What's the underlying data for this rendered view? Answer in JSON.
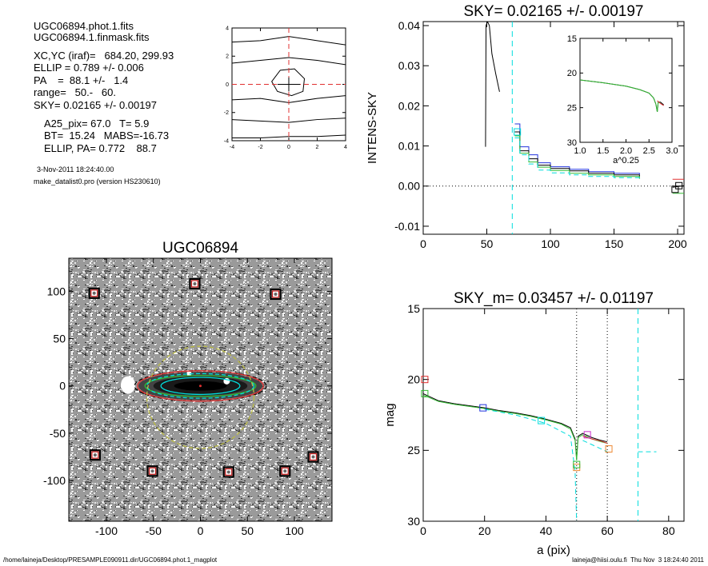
{
  "info": {
    "header": [
      "UGC06894.phot.1.fits",
      "UGC06894.1.finmask.fits"
    ],
    "params": [
      "XC,YC (iraf)=   684.20, 299.93",
      "ELLIP = 0.789 +/- 0.006",
      "PA    =  88.1 +/-   1.4",
      "range=   50.-   60.",
      "SKY= 0.02165 +/- 0.00197"
    ],
    "results": [
      "A25_pix= 67.0   T= 5.9",
      "BT=  15.24   MABS=-16.73",
      "ELLIP, PA= 0.772    88.7"
    ],
    "date": "3-Nov-2011 18:24:40.00",
    "program": "make_datalist0.pro (version HS230610)"
  },
  "footer": {
    "left": "/home/laineja/Desktop/PRESAMPLE090911.dir/UGC06894.phot.1_magplot",
    "right": "laineja@hiisi.oulu.fi  Thu Nov  3 18:24:40 2011"
  },
  "colors": {
    "black": "#000000",
    "red": "#e03030",
    "green": "#33bb33",
    "blue": "#2233dd",
    "cyan": "#00dddd",
    "magenta": "#cc33cc",
    "orange": "#ee8833",
    "olive": "#bbbb44"
  },
  "chart_data": [
    {
      "id": "centroid-plot",
      "type": "line",
      "title": "",
      "xlim": [
        -4,
        4
      ],
      "ylim": [
        -4,
        4
      ],
      "xticks": [
        -4,
        -2,
        0,
        2,
        4
      ],
      "yticks": [
        -4,
        -2,
        0,
        2,
        4
      ],
      "series": [
        {
          "color": "black",
          "points": [
            [
              -4,
              3.0
            ],
            [
              -2,
              3.1
            ],
            [
              0,
              3.4
            ],
            [
              2,
              3.1
            ],
            [
              4,
              2.8
            ]
          ]
        },
        {
          "color": "black",
          "points": [
            [
              -4,
              1.5
            ],
            [
              -2,
              1.7
            ],
            [
              0,
              1.9
            ],
            [
              2,
              1.7
            ],
            [
              4,
              1.4
            ]
          ]
        },
        {
          "color": "black",
          "points": [
            [
              -4,
              -1.1
            ],
            [
              -2,
              -1.0
            ],
            [
              0,
              -1.3
            ],
            [
              2,
              -1.0
            ],
            [
              4,
              -0.8
            ]
          ]
        },
        {
          "color": "black",
          "points": [
            [
              -4,
              -2.5
            ],
            [
              -2,
              -2.6
            ],
            [
              0,
              -2.7
            ],
            [
              2,
              -2.5
            ],
            [
              4,
              -2.4
            ]
          ]
        },
        {
          "color": "black",
          "points": [
            [
              -4,
              -3.8
            ],
            [
              -2,
              -3.8
            ],
            [
              0,
              -3.7
            ],
            [
              2,
              -3.7
            ],
            [
              4,
              -3.6
            ]
          ]
        },
        {
          "color": "black",
          "closed": true,
          "points": [
            [
              -1.2,
              0.2
            ],
            [
              -0.6,
              1.0
            ],
            [
              0.4,
              1.1
            ],
            [
              1.1,
              0.4
            ],
            [
              1.0,
              -0.5
            ],
            [
              0.2,
              -0.8
            ],
            [
              -0.8,
              -0.5
            ]
          ]
        }
      ],
      "crosshair": {
        "x": 0,
        "y": 0,
        "color": "red"
      }
    },
    {
      "id": "sky-profile",
      "type": "line",
      "title": "SKY= 0.02165 +/- 0.00197",
      "ylabel": "INTENS-SKY",
      "xlim": [
        0,
        205
      ],
      "ylim": [
        -0.012,
        0.041
      ],
      "xticks": [
        0,
        50,
        100,
        150,
        200
      ],
      "yticks": [
        -0.01,
        0.0,
        0.01,
        0.02,
        0.03,
        0.04
      ],
      "ytick_labels": [
        "-0.01",
        "0.00",
        "0.01",
        "0.02",
        "0.03",
        "0.04"
      ],
      "zero_line": true,
      "vline": {
        "x": 70,
        "color": "cyan"
      },
      "series": [
        {
          "color": "black",
          "points": [
            [
              49,
              0.0098
            ],
            [
              49.4,
              0.04
            ],
            [
              50.5,
              0.041
            ],
            [
              52,
              0.04
            ],
            [
              54,
              0.033
            ],
            [
              57,
              0.028
            ],
            [
              60,
              0.0235
            ]
          ]
        },
        {
          "color": "blue",
          "step": true,
          "points": [
            [
              72,
              0.0155
            ],
            [
              76,
              0.0098
            ],
            [
              83,
              0.0078
            ],
            [
              90,
              0.0058
            ],
            [
              100,
              0.0048
            ],
            [
              115,
              0.0042
            ],
            [
              130,
              0.0036
            ],
            [
              150,
              0.0032
            ],
            [
              170,
              0.0029
            ]
          ]
        },
        {
          "color": "black",
          "step": true,
          "points": [
            [
              72,
              0.0135
            ],
            [
              76,
              0.0088
            ],
            [
              83,
              0.0068
            ],
            [
              90,
              0.0052
            ],
            [
              100,
              0.0044
            ],
            [
              115,
              0.0038
            ],
            [
              130,
              0.0032
            ],
            [
              150,
              0.0028
            ],
            [
              170,
              0.0022
            ]
          ]
        },
        {
          "color": "green",
          "step": true,
          "points": [
            [
              72,
              0.0125
            ],
            [
              76,
              0.0082
            ],
            [
              83,
              0.006
            ],
            [
              90,
              0.0047
            ],
            [
              100,
              0.0039
            ],
            [
              115,
              0.0032
            ],
            [
              130,
              0.0028
            ],
            [
              150,
              0.0024
            ],
            [
              170,
              0.0018
            ]
          ]
        },
        {
          "color": "cyan",
          "step": true,
          "dashed": true,
          "points": [
            [
              72,
              0.012
            ],
            [
              76,
              0.0078
            ],
            [
              83,
              0.0055
            ],
            [
              90,
              0.004
            ],
            [
              100,
              0.0033
            ],
            [
              115,
              0.0028
            ],
            [
              130,
              0.0024
            ],
            [
              150,
              0.0021
            ],
            [
              170,
              0.0015
            ]
          ]
        },
        {
          "color": "red",
          "points": [
            [
              196,
              0.0017
            ],
            [
              205,
              0.0017
            ]
          ]
        },
        {
          "color": "green",
          "points": [
            [
              196,
              -0.0018
            ],
            [
              205,
              -0.0018
            ]
          ]
        },
        {
          "color": "black",
          "points": [
            [
              196,
              -0.0003
            ],
            [
              205,
              0.0001
            ]
          ]
        }
      ],
      "markers": [
        {
          "x": 74,
          "y": 0.0135,
          "color": "cyan"
        },
        {
          "x": 198,
          "y": -0.0008,
          "color": "black"
        },
        {
          "x": 201,
          "y": 0.0001,
          "color": "black"
        }
      ]
    },
    {
      "id": "inset-profile",
      "type": "line",
      "title": "",
      "xlabel": "a^0.25",
      "xlim": [
        1.0,
        3.0
      ],
      "ylim": [
        15,
        30
      ],
      "y_inverted": true,
      "xticks": [
        1.0,
        1.5,
        2.0,
        2.5,
        3.0
      ],
      "xtick_labels": [
        "1.0",
        "1.5",
        "2.0",
        "2.5",
        "3.0"
      ],
      "yticks": [
        15,
        20,
        25,
        30
      ],
      "series": [
        {
          "color": "black",
          "points": [
            [
              1.0,
              21.0
            ],
            [
              1.5,
              21.4
            ],
            [
              2.0,
              21.9
            ],
            [
              2.3,
              22.4
            ],
            [
              2.5,
              22.9
            ],
            [
              2.6,
              23.6
            ],
            [
              2.65,
              24.5
            ],
            [
              2.68,
              25.6
            ],
            [
              2.7,
              24.2
            ],
            [
              2.75,
              24.2
            ],
            [
              2.82,
              24.6
            ]
          ]
        },
        {
          "color": "green",
          "points": [
            [
              1.0,
              21.0
            ],
            [
              1.5,
              21.4
            ],
            [
              2.0,
              21.9
            ],
            [
              2.3,
              22.4
            ],
            [
              2.5,
              22.9
            ],
            [
              2.6,
              23.6
            ],
            [
              2.65,
              24.5
            ],
            [
              2.68,
              25.6
            ],
            [
              2.7,
              24.2
            ],
            [
              2.75,
              24.3
            ]
          ]
        },
        {
          "color": "red",
          "points": [
            [
              2.68,
              24.0
            ],
            [
              2.75,
              24.4
            ],
            [
              2.82,
              24.7
            ]
          ]
        }
      ]
    },
    {
      "id": "galaxy-image",
      "type": "scatter",
      "title": "UGC06894",
      "xlim": [
        -140,
        140
      ],
      "ylim": [
        -143,
        135
      ],
      "xticks": [
        -100,
        -50,
        0,
        50,
        100
      ],
      "yticks": [
        -100,
        -50,
        0,
        50,
        100
      ],
      "stars": [
        {
          "x": -113,
          "y": 98
        },
        {
          "x": -6,
          "y": 108
        },
        {
          "x": 80,
          "y": 97
        },
        {
          "x": -112,
          "y": -73
        },
        {
          "x": -51,
          "y": -90
        },
        {
          "x": 30,
          "y": -91
        },
        {
          "x": 90,
          "y": -90
        },
        {
          "x": 120,
          "y": -75
        }
      ],
      "ellipses": [
        {
          "a": 70,
          "b": 16,
          "color": "black",
          "dashed": true
        },
        {
          "a": 67,
          "b": 16,
          "color": "red",
          "dashed": false
        },
        {
          "a": 59,
          "b": 11,
          "color": "green",
          "dashed": false
        },
        {
          "a": 42,
          "b": 9,
          "color": "cyan",
          "dashed": false
        },
        {
          "a": 57,
          "b": 13,
          "color": "cyan",
          "dashed": true
        },
        {
          "a": 57,
          "b": 54,
          "color": "olive",
          "dashed": true,
          "cy": -12
        }
      ]
    },
    {
      "id": "mag-profile",
      "type": "line",
      "title": "SKY_m=  0.03457 +/- 0.01197",
      "xlabel": "a (pix)",
      "ylabel": "mag",
      "xlim": [
        0,
        85
      ],
      "ylim": [
        15,
        30
      ],
      "y_inverted": true,
      "xticks": [
        0,
        20,
        40,
        60,
        80
      ],
      "yticks": [
        15,
        20,
        25,
        30
      ],
      "vlines": [
        {
          "x": 50,
          "color": "black",
          "dotted": true
        },
        {
          "x": 60,
          "color": "black",
          "dotted": true
        },
        {
          "x": 70,
          "color": "cyan",
          "dashed": true
        }
      ],
      "series": [
        {
          "color": "black",
          "points": [
            [
              0,
              21.0
            ],
            [
              5,
              21.5
            ],
            [
              10,
              21.7
            ],
            [
              15,
              21.85
            ],
            [
              20,
              22.0
            ],
            [
              25,
              22.2
            ],
            [
              30,
              22.35
            ],
            [
              35,
              22.55
            ],
            [
              40,
              22.8
            ],
            [
              45,
              23.1
            ],
            [
              48,
              23.4
            ],
            [
              49.5,
              24.2
            ],
            [
              50,
              25.6
            ],
            [
              50.5,
              24.0
            ],
            [
              52,
              23.8
            ],
            [
              55,
              24.1
            ],
            [
              58,
              24.3
            ],
            [
              60,
              24.4
            ]
          ]
        },
        {
          "color": "green",
          "points": [
            [
              0,
              21.1
            ],
            [
              5,
              21.55
            ],
            [
              10,
              21.75
            ],
            [
              15,
              21.9
            ],
            [
              20,
              22.05
            ],
            [
              25,
              22.25
            ],
            [
              30,
              22.4
            ],
            [
              35,
              22.6
            ],
            [
              40,
              22.85
            ],
            [
              45,
              23.15
            ],
            [
              48,
              23.5
            ],
            [
              49.5,
              24.3
            ],
            [
              50,
              25.7
            ],
            [
              50.5,
              24.1
            ],
            [
              52,
              23.9
            ],
            [
              55,
              24.2
            ],
            [
              58,
              24.4
            ],
            [
              60,
              24.5
            ]
          ]
        },
        {
          "color": "red",
          "points": [
            [
              52,
              24.0
            ],
            [
              55,
              24.2
            ],
            [
              58,
              24.35
            ],
            [
              60,
              24.5
            ]
          ]
        },
        {
          "color": "cyan",
          "dashed": true,
          "points": [
            [
              20,
              22.1
            ],
            [
              30,
              22.5
            ],
            [
              40,
              23.1
            ],
            [
              48,
              24.0
            ],
            [
              49.5,
              26.5
            ],
            [
              50,
              30.0
            ]
          ]
        },
        {
          "color": "cyan",
          "dashed": true,
          "points": [
            [
              52,
              24.3
            ],
            [
              57,
              24.8
            ],
            [
              60,
              25.1
            ]
          ]
        },
        {
          "color": "cyan",
          "dashed": true,
          "points": [
            [
              70,
              25.1
            ],
            [
              76,
              25.1
            ]
          ]
        }
      ],
      "markers": [
        {
          "x": 0.5,
          "y": 20.0,
          "color": "red"
        },
        {
          "x": 0.5,
          "y": 21.0,
          "color": "green"
        },
        {
          "x": 19.5,
          "y": 22.0,
          "color": "blue"
        },
        {
          "x": 38.5,
          "y": 22.9,
          "color": "cyan"
        },
        {
          "x": 50,
          "y": 26.2,
          "color": "orange"
        },
        {
          "x": 50,
          "y": 26.0,
          "color": "green"
        },
        {
          "x": 53.5,
          "y": 23.9,
          "color": "magenta"
        },
        {
          "x": 60.5,
          "y": 24.9,
          "color": "orange"
        }
      ]
    }
  ]
}
